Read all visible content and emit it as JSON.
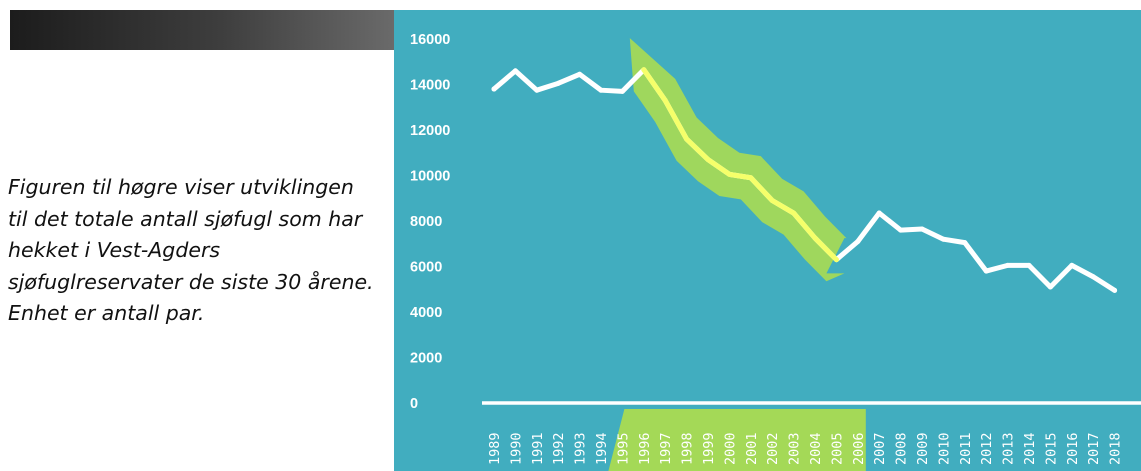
{
  "caption": "Figuren til høgre viser utviklingen til det totale antall sjøfugl som har hekket i Vest-Agders sjøfuglreservater de siste 30 årene. Enhet er antall par.",
  "colors": {
    "panel_bg": "#41adbf",
    "line": "#ffffff",
    "highlight_line": "#f5ff6a",
    "highlight_band": "#a4d957",
    "title_bar": "#2a2a2a"
  },
  "chart_data": {
    "type": "line",
    "title": "",
    "xlabel": "",
    "ylabel": "",
    "ylim": [
      0,
      16000
    ],
    "yticks": [
      0,
      2000,
      4000,
      6000,
      8000,
      10000,
      12000,
      14000,
      16000
    ],
    "grid": false,
    "categories": [
      "1989",
      "1990",
      "1991",
      "1992",
      "1993",
      "1994",
      "1995",
      "1996",
      "1997",
      "1998",
      "1999",
      "2000",
      "2001",
      "2002",
      "2003",
      "2004",
      "2005",
      "2006",
      "2007",
      "2008",
      "2009",
      "2010",
      "2011",
      "2012",
      "2013",
      "2014",
      "2015",
      "2016",
      "2017",
      "2018"
    ],
    "values": [
      13800,
      14600,
      13750,
      14050,
      14450,
      13750,
      13700,
      14650,
      13300,
      11600,
      10700,
      10050,
      9900,
      8900,
      8350,
      7250,
      6300,
      7100,
      8350,
      7600,
      7650,
      7200,
      7050,
      5800,
      6050,
      6050,
      5100,
      6050,
      5550,
      4950
    ],
    "highlight": {
      "from": "1995",
      "to": "2006",
      "series": [
        "1996",
        "1997",
        "1998",
        "1999",
        "2000",
        "2001",
        "2002",
        "2003",
        "2004",
        "2005"
      ]
    }
  }
}
